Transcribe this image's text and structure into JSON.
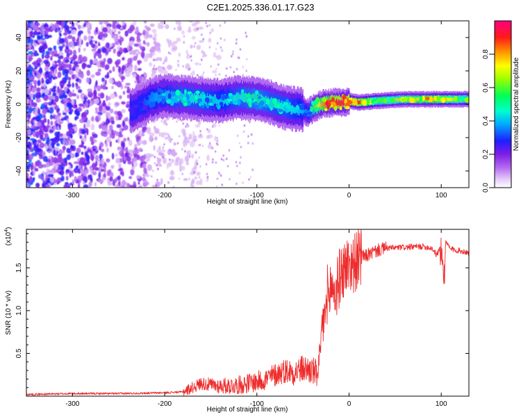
{
  "page_title": "C2E1.2025.336.01.17.G23",
  "chart_data": [
    {
      "type": "heatmap",
      "title": "C2E1.2025.336.01.17.G23",
      "xlabel": "Height of straight line (km)",
      "ylabel": "Frequency (Hz)",
      "xlim": [
        -350,
        130
      ],
      "ylim": [
        -50,
        50
      ],
      "x_ticks": [
        -300,
        -200,
        -100,
        0,
        100
      ],
      "x_tick_labels": [
        "-300",
        "-200",
        "-100",
        "0",
        "100"
      ],
      "y_ticks": [
        -40,
        -20,
        0,
        20,
        40
      ],
      "y_tick_labels": [
        "-40",
        "-20",
        "0",
        "20",
        "40"
      ],
      "colorbar": {
        "label": "Normalized spectral amplitude",
        "range": [
          0,
          1
        ],
        "ticks": [
          0.0,
          0.2,
          0.4,
          0.6,
          0.8
        ],
        "tick_labels": [
          "0.0",
          "0.2",
          "0.4",
          "0.6",
          "0.8"
        ],
        "colormap": [
          "#ffffff",
          "#d8b4f5",
          "#8a2be2",
          "#0000ff",
          "#00c8ff",
          "#00ff80",
          "#80ff00",
          "#ffff00",
          "#ff8000",
          "#ff0000",
          "#ff0080"
        ]
      },
      "ridge": {
        "x": [
          -235,
          -215,
          -200,
          -180,
          -160,
          -140,
          -120,
          -100,
          -85,
          -70,
          -55,
          -45,
          -38,
          -30,
          -20,
          -10,
          0,
          10,
          30,
          60,
          90,
          110,
          130
        ],
        "frequency_hz": [
          -4,
          3,
          5,
          4,
          3,
          2,
          4,
          3,
          1,
          -2,
          -3,
          -5,
          -2,
          0,
          1,
          1,
          2,
          1,
          2,
          3,
          3,
          3,
          3
        ],
        "amplitude": [
          0.25,
          0.35,
          0.4,
          0.45,
          0.45,
          0.4,
          0.45,
          0.5,
          0.45,
          0.45,
          0.4,
          0.35,
          0.6,
          0.8,
          0.9,
          0.95,
          0.95,
          0.9,
          0.6,
          0.7,
          0.8,
          0.7,
          0.6
        ]
      },
      "noise_region_x": [
        -350,
        -215
      ]
    },
    {
      "type": "line",
      "xlabel": "Height of straight line (km)",
      "ylabel": "SNR (10 * v/v)",
      "y_scale_label": "(x10",
      "y_scale_exponent": "4",
      "xlim": [
        -350,
        130
      ],
      "ylim": [
        0,
        1.95
      ],
      "x_ticks": [
        -300,
        -200,
        -100,
        0,
        100
      ],
      "x_tick_labels": [
        "-300",
        "-200",
        "-100",
        "0",
        "100"
      ],
      "y_ticks": [
        0.5,
        1.0,
        1.5
      ],
      "y_tick_labels": [
        "0.5",
        "1.0",
        "1.5"
      ],
      "series": [
        {
          "name": "SNR",
          "color": "#ee2b2b",
          "x": [
            -350,
            -300,
            -250,
            -200,
            -180,
            -170,
            -160,
            -150,
            -140,
            -130,
            -120,
            -110,
            -100,
            -90,
            -80,
            -70,
            -60,
            -50,
            -40,
            -35,
            -30,
            -28,
            -25,
            -22,
            -20,
            -15,
            -10,
            -5,
            0,
            5,
            10,
            20,
            30,
            40,
            60,
            80,
            90,
            95,
            100,
            103,
            105,
            110,
            120,
            130
          ],
          "values": [
            0.02,
            0.03,
            0.03,
            0.04,
            0.05,
            0.1,
            0.15,
            0.13,
            0.12,
            0.12,
            0.13,
            0.15,
            0.17,
            0.2,
            0.25,
            0.3,
            0.28,
            0.32,
            0.3,
            0.25,
            0.6,
            0.9,
            1.0,
            1.1,
            1.3,
            1.2,
            1.4,
            1.5,
            1.55,
            1.55,
            1.6,
            1.65,
            1.7,
            1.73,
            1.74,
            1.75,
            1.73,
            1.65,
            1.75,
            1.4,
            1.8,
            1.72,
            1.7,
            1.68
          ]
        }
      ]
    }
  ]
}
